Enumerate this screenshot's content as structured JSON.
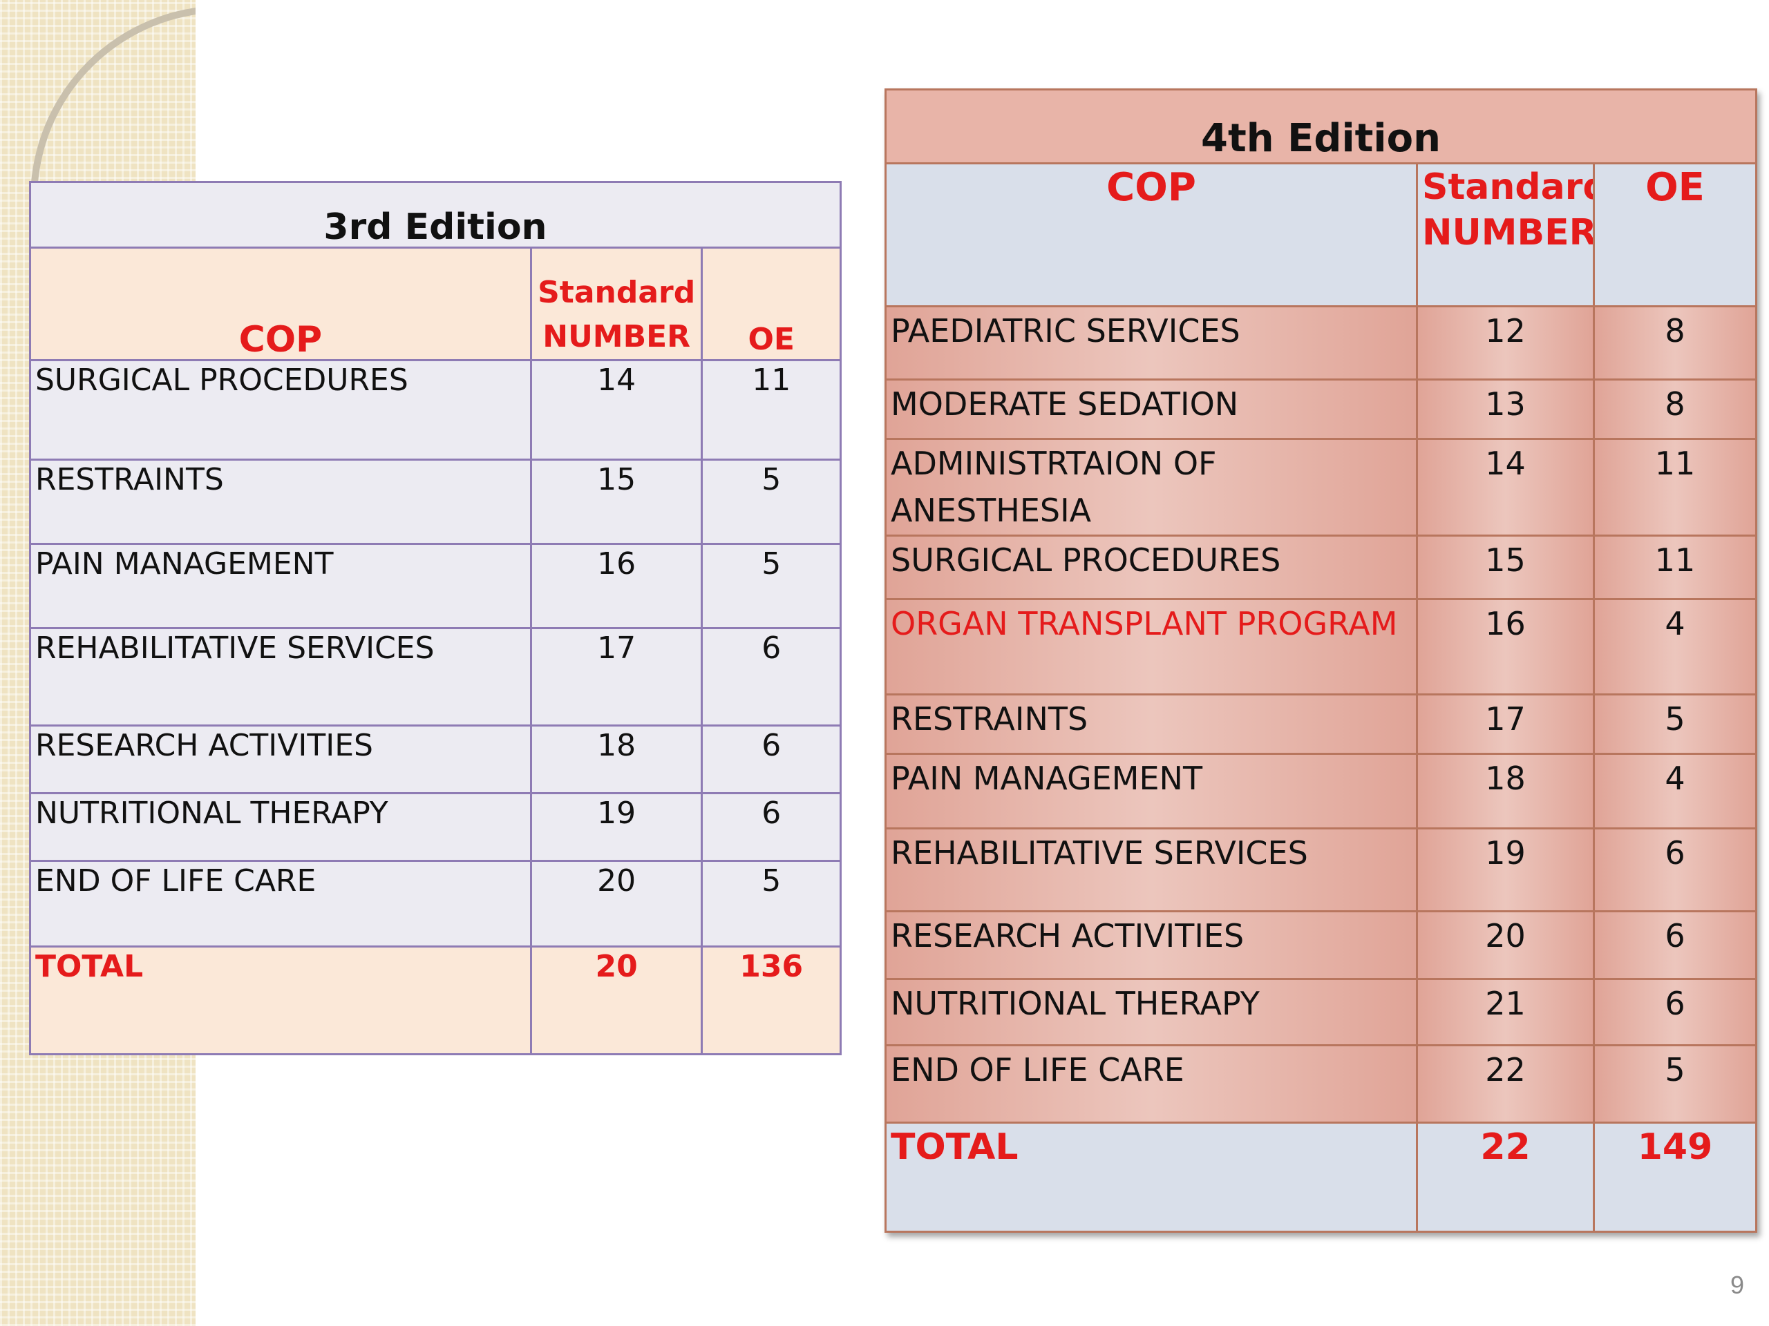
{
  "third": {
    "title": "3rd Edition",
    "headers": {
      "cop": "COP",
      "std": "Standard NUMBER",
      "oe": "OE"
    },
    "rows": [
      {
        "cop": "SURGICAL PROCEDURES",
        "std": "14",
        "oe": "11"
      },
      {
        "cop": "RESTRAINTS",
        "std": "15",
        "oe": "5"
      },
      {
        "cop": "PAIN MANAGEMENT",
        "std": "16",
        "oe": "5"
      },
      {
        "cop": "REHABILITATIVE SERVICES",
        "std": "17",
        "oe": "6"
      },
      {
        "cop": "RESEARCH ACTIVITIES",
        "std": "18",
        "oe": "6"
      },
      {
        "cop": "NUTRITIONAL THERAPY",
        "std": "19",
        "oe": "6"
      },
      {
        "cop": "END OF LIFE CARE",
        "std": "20",
        "oe": "5"
      }
    ],
    "total": {
      "cop": "TOTAL",
      "std": "20",
      "oe": "136"
    }
  },
  "fourth": {
    "title": "4th Edition",
    "headers": {
      "cop": "COP",
      "std": "Standard NUMBER",
      "oe": "OE"
    },
    "rows": [
      {
        "cop": "PAEDIATRIC SERVICES",
        "std": "12",
        "oe": "8"
      },
      {
        "cop": "MODERATE SEDATION",
        "std": "13",
        "oe": "8"
      },
      {
        "cop": "ADMINISTRTAION OF ANESTHESIA",
        "std": "14",
        "oe": "11"
      },
      {
        "cop": "SURGICAL PROCEDURES",
        "std": "15",
        "oe": "11"
      },
      {
        "cop": "ORGAN TRANSPLANT PROGRAM",
        "std": "16",
        "oe": "4"
      },
      {
        "cop": "RESTRAINTS",
        "std": "17",
        "oe": "5"
      },
      {
        "cop": "PAIN MANAGEMENT",
        "std": "18",
        "oe": "4"
      },
      {
        "cop": "REHABILITATIVE SERVICES",
        "std": "19",
        "oe": "6"
      },
      {
        "cop": "RESEARCH ACTIVITIES",
        "std": "20",
        "oe": "6"
      },
      {
        "cop": "NUTRITIONAL THERAPY",
        "std": "21",
        "oe": "6"
      },
      {
        "cop": "END OF LIFE CARE",
        "std": "22",
        "oe": "5"
      }
    ],
    "total": {
      "cop": "TOTAL",
      "std": "22",
      "oe": "149"
    }
  },
  "page_number": "9"
}
